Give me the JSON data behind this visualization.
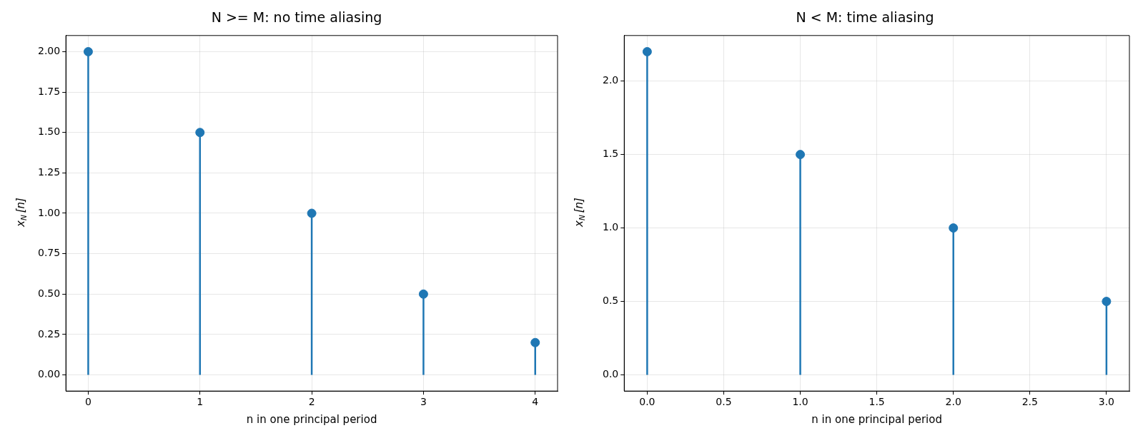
{
  "chart_data": [
    {
      "type": "lollipop",
      "title": "N >= M: no time aliasing",
      "xlabel": "n in one principal period",
      "ylabel": "x$_{N}$[n]",
      "x": [
        0,
        1,
        2,
        3,
        4
      ],
      "series": [
        {
          "color": "#1f77b4",
          "values": [
            2,
            1.5,
            1,
            0.5,
            0.2
          ]
        }
      ],
      "xlim": [
        -0.2,
        4.2
      ],
      "xticks": [
        0,
        1,
        2,
        3,
        4
      ],
      "ylim": [
        -0.1,
        2.1
      ],
      "yticks": [
        {
          "value": 0,
          "label": "0.00"
        },
        {
          "value": 0.25,
          "label": "0.25"
        },
        {
          "value": 0.5,
          "label": "0.50"
        },
        {
          "value": 0.75,
          "label": "0.75"
        },
        {
          "value": 1,
          "label": "1.00"
        },
        {
          "value": 1.25,
          "label": "1.25"
        },
        {
          "value": 1.5,
          "label": "1.50"
        },
        {
          "value": 1.75,
          "label": "1.75"
        },
        {
          "value": 2,
          "label": "2.00"
        }
      ],
      "grid": true,
      "marker": "circle"
    },
    {
      "type": "lollipop",
      "title": "N < M: time aliasing",
      "xlabel": "n in one principal period",
      "ylabel": "x$_{N}$[n]",
      "x": [
        0,
        1,
        2,
        3
      ],
      "series": [
        {
          "color": "#1f77b4",
          "values": [
            2.2,
            1.5,
            1,
            0.5
          ]
        }
      ],
      "xlim": [
        -0.15,
        3.15
      ],
      "xticks": [
        {
          "value": 0,
          "label": "0.0"
        },
        {
          "value": 0.5,
          "label": "0.5"
        },
        {
          "value": 1,
          "label": "1.0"
        },
        {
          "value": 1.5,
          "label": "1.5"
        },
        {
          "value": 2,
          "label": "2.0"
        },
        {
          "value": 2.5,
          "label": "2.5"
        },
        {
          "value": 3,
          "label": "3.0"
        }
      ],
      "ylim": [
        -0.11,
        2.31
      ],
      "yticks": [
        {
          "value": 0,
          "label": "0.0"
        },
        {
          "value": 0.5,
          "label": "0.5"
        },
        {
          "value": 1,
          "label": "1.0"
        },
        {
          "value": 1.5,
          "label": "1.5"
        },
        {
          "value": 2,
          "label": "2.0"
        }
      ],
      "grid": true,
      "marker": "circle"
    }
  ]
}
